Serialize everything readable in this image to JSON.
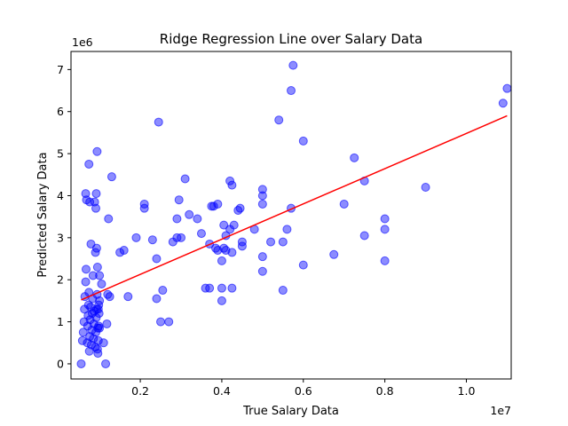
{
  "chart_data": {
    "type": "scatter",
    "title": "Ridge Regression Line over Salary Data",
    "xlabel": "True Salary Data",
    "ylabel": "Predicted Salary Data",
    "x_offset_text": "1e7",
    "y_offset_text": "1e6",
    "xlim": [
      0.03,
      1.11
    ],
    "ylim": [
      -0.36,
      7.43
    ],
    "x_ticks": [
      0.2,
      0.4,
      0.6,
      0.8,
      1.0
    ],
    "x_tick_labels": [
      "0.2",
      "0.4",
      "0.6",
      "0.8",
      "1.0"
    ],
    "y_ticks": [
      0,
      1,
      2,
      3,
      4,
      5,
      6,
      7
    ],
    "y_tick_labels": [
      "0",
      "1",
      "2",
      "3",
      "4",
      "5",
      "6",
      "7"
    ],
    "grid": false,
    "scatter_color": "#0000ff",
    "line_color": "#ff0000",
    "points": [
      [
        0.055,
        0.0
      ],
      [
        0.058,
        0.55
      ],
      [
        0.06,
        0.75
      ],
      [
        0.062,
        1.0
      ],
      [
        0.063,
        1.3
      ],
      [
        0.064,
        1.6
      ],
      [
        0.066,
        1.95
      ],
      [
        0.067,
        2.25
      ],
      [
        0.068,
        3.9
      ],
      [
        0.066,
        4.05
      ],
      [
        0.07,
        0.5
      ],
      [
        0.071,
        0.9
      ],
      [
        0.072,
        1.15
      ],
      [
        0.073,
        1.4
      ],
      [
        0.074,
        1.7
      ],
      [
        0.075,
        0.3
      ],
      [
        0.076,
        0.65
      ],
      [
        0.077,
        1.05
      ],
      [
        0.078,
        1.35
      ],
      [
        0.079,
        2.85
      ],
      [
        0.08,
        0.45
      ],
      [
        0.081,
        0.8
      ],
      [
        0.082,
        1.2
      ],
      [
        0.083,
        1.55
      ],
      [
        0.084,
        2.1
      ],
      [
        0.085,
        0.6
      ],
      [
        0.086,
        0.95
      ],
      [
        0.087,
        1.25
      ],
      [
        0.088,
        3.85
      ],
      [
        0.09,
        0.4
      ],
      [
        0.091,
        0.75
      ],
      [
        0.092,
        1.1
      ],
      [
        0.093,
        1.3
      ],
      [
        0.094,
        1.65
      ],
      [
        0.095,
        2.3
      ],
      [
        0.096,
        0.25
      ],
      [
        0.097,
        0.55
      ],
      [
        0.098,
        0.9
      ],
      [
        0.099,
        1.2
      ],
      [
        0.1,
        1.5
      ],
      [
        0.074,
        4.75
      ],
      [
        0.076,
        3.85
      ],
      [
        0.094,
        5.05
      ],
      [
        0.092,
        4.05
      ],
      [
        0.091,
        3.7
      ],
      [
        0.093,
        2.75
      ],
      [
        0.09,
        2.65
      ],
      [
        0.095,
        0.35
      ],
      [
        0.096,
        0.85
      ],
      [
        0.097,
        1.3
      ],
      [
        0.1,
        2.1
      ],
      [
        0.105,
        1.9
      ],
      [
        0.11,
        0.5
      ],
      [
        0.115,
        0.0
      ],
      [
        0.118,
        0.95
      ],
      [
        0.12,
        1.65
      ],
      [
        0.125,
        1.6
      ],
      [
        0.122,
        3.45
      ],
      [
        0.13,
        4.45
      ],
      [
        0.15,
        2.65
      ],
      [
        0.16,
        2.7
      ],
      [
        0.17,
        1.6
      ],
      [
        0.19,
        3.0
      ],
      [
        0.21,
        3.7
      ],
      [
        0.21,
        3.8
      ],
      [
        0.23,
        2.95
      ],
      [
        0.24,
        2.5
      ],
      [
        0.24,
        1.55
      ],
      [
        0.245,
        5.75
      ],
      [
        0.25,
        1.0
      ],
      [
        0.255,
        1.75
      ],
      [
        0.27,
        1.0
      ],
      [
        0.28,
        2.9
      ],
      [
        0.29,
        3.0
      ],
      [
        0.29,
        3.45
      ],
      [
        0.295,
        3.9
      ],
      [
        0.3,
        3.0
      ],
      [
        0.31,
        4.4
      ],
      [
        0.32,
        3.55
      ],
      [
        0.34,
        3.45
      ],
      [
        0.35,
        3.1
      ],
      [
        0.36,
        1.8
      ],
      [
        0.37,
        1.8
      ],
      [
        0.37,
        2.85
      ],
      [
        0.375,
        3.75
      ],
      [
        0.38,
        3.75
      ],
      [
        0.385,
        2.75
      ],
      [
        0.39,
        2.7
      ],
      [
        0.39,
        3.8
      ],
      [
        0.4,
        1.5
      ],
      [
        0.4,
        1.8
      ],
      [
        0.4,
        2.45
      ],
      [
        0.405,
        2.75
      ],
      [
        0.405,
        3.3
      ],
      [
        0.41,
        2.7
      ],
      [
        0.41,
        3.05
      ],
      [
        0.42,
        4.35
      ],
      [
        0.42,
        3.2
      ],
      [
        0.425,
        2.65
      ],
      [
        0.425,
        4.25
      ],
      [
        0.425,
        1.8
      ],
      [
        0.43,
        3.3
      ],
      [
        0.44,
        3.65
      ],
      [
        0.445,
        3.7
      ],
      [
        0.45,
        2.8
      ],
      [
        0.45,
        2.9
      ],
      [
        0.48,
        3.2
      ],
      [
        0.5,
        3.8
      ],
      [
        0.5,
        4.0
      ],
      [
        0.5,
        4.15
      ],
      [
        0.5,
        2.2
      ],
      [
        0.5,
        2.55
      ],
      [
        0.52,
        2.9
      ],
      [
        0.54,
        5.8
      ],
      [
        0.55,
        1.75
      ],
      [
        0.55,
        2.9
      ],
      [
        0.56,
        3.2
      ],
      [
        0.57,
        6.5
      ],
      [
        0.575,
        7.1
      ],
      [
        0.57,
        3.7
      ],
      [
        0.6,
        5.3
      ],
      [
        0.6,
        2.35
      ],
      [
        0.675,
        2.6
      ],
      [
        0.7,
        3.8
      ],
      [
        0.725,
        4.9
      ],
      [
        0.75,
        3.05
      ],
      [
        0.75,
        4.35
      ],
      [
        0.8,
        3.45
      ],
      [
        0.8,
        3.2
      ],
      [
        0.8,
        2.45
      ],
      [
        0.9,
        4.2
      ],
      [
        1.09,
        6.2
      ],
      [
        1.1,
        6.55
      ],
      [
        0.1,
        0.85
      ],
      [
        0.098,
        1.4
      ]
    ],
    "regression_line": {
      "x": [
        0.055,
        1.1
      ],
      "y": [
        1.52,
        5.9
      ]
    }
  }
}
